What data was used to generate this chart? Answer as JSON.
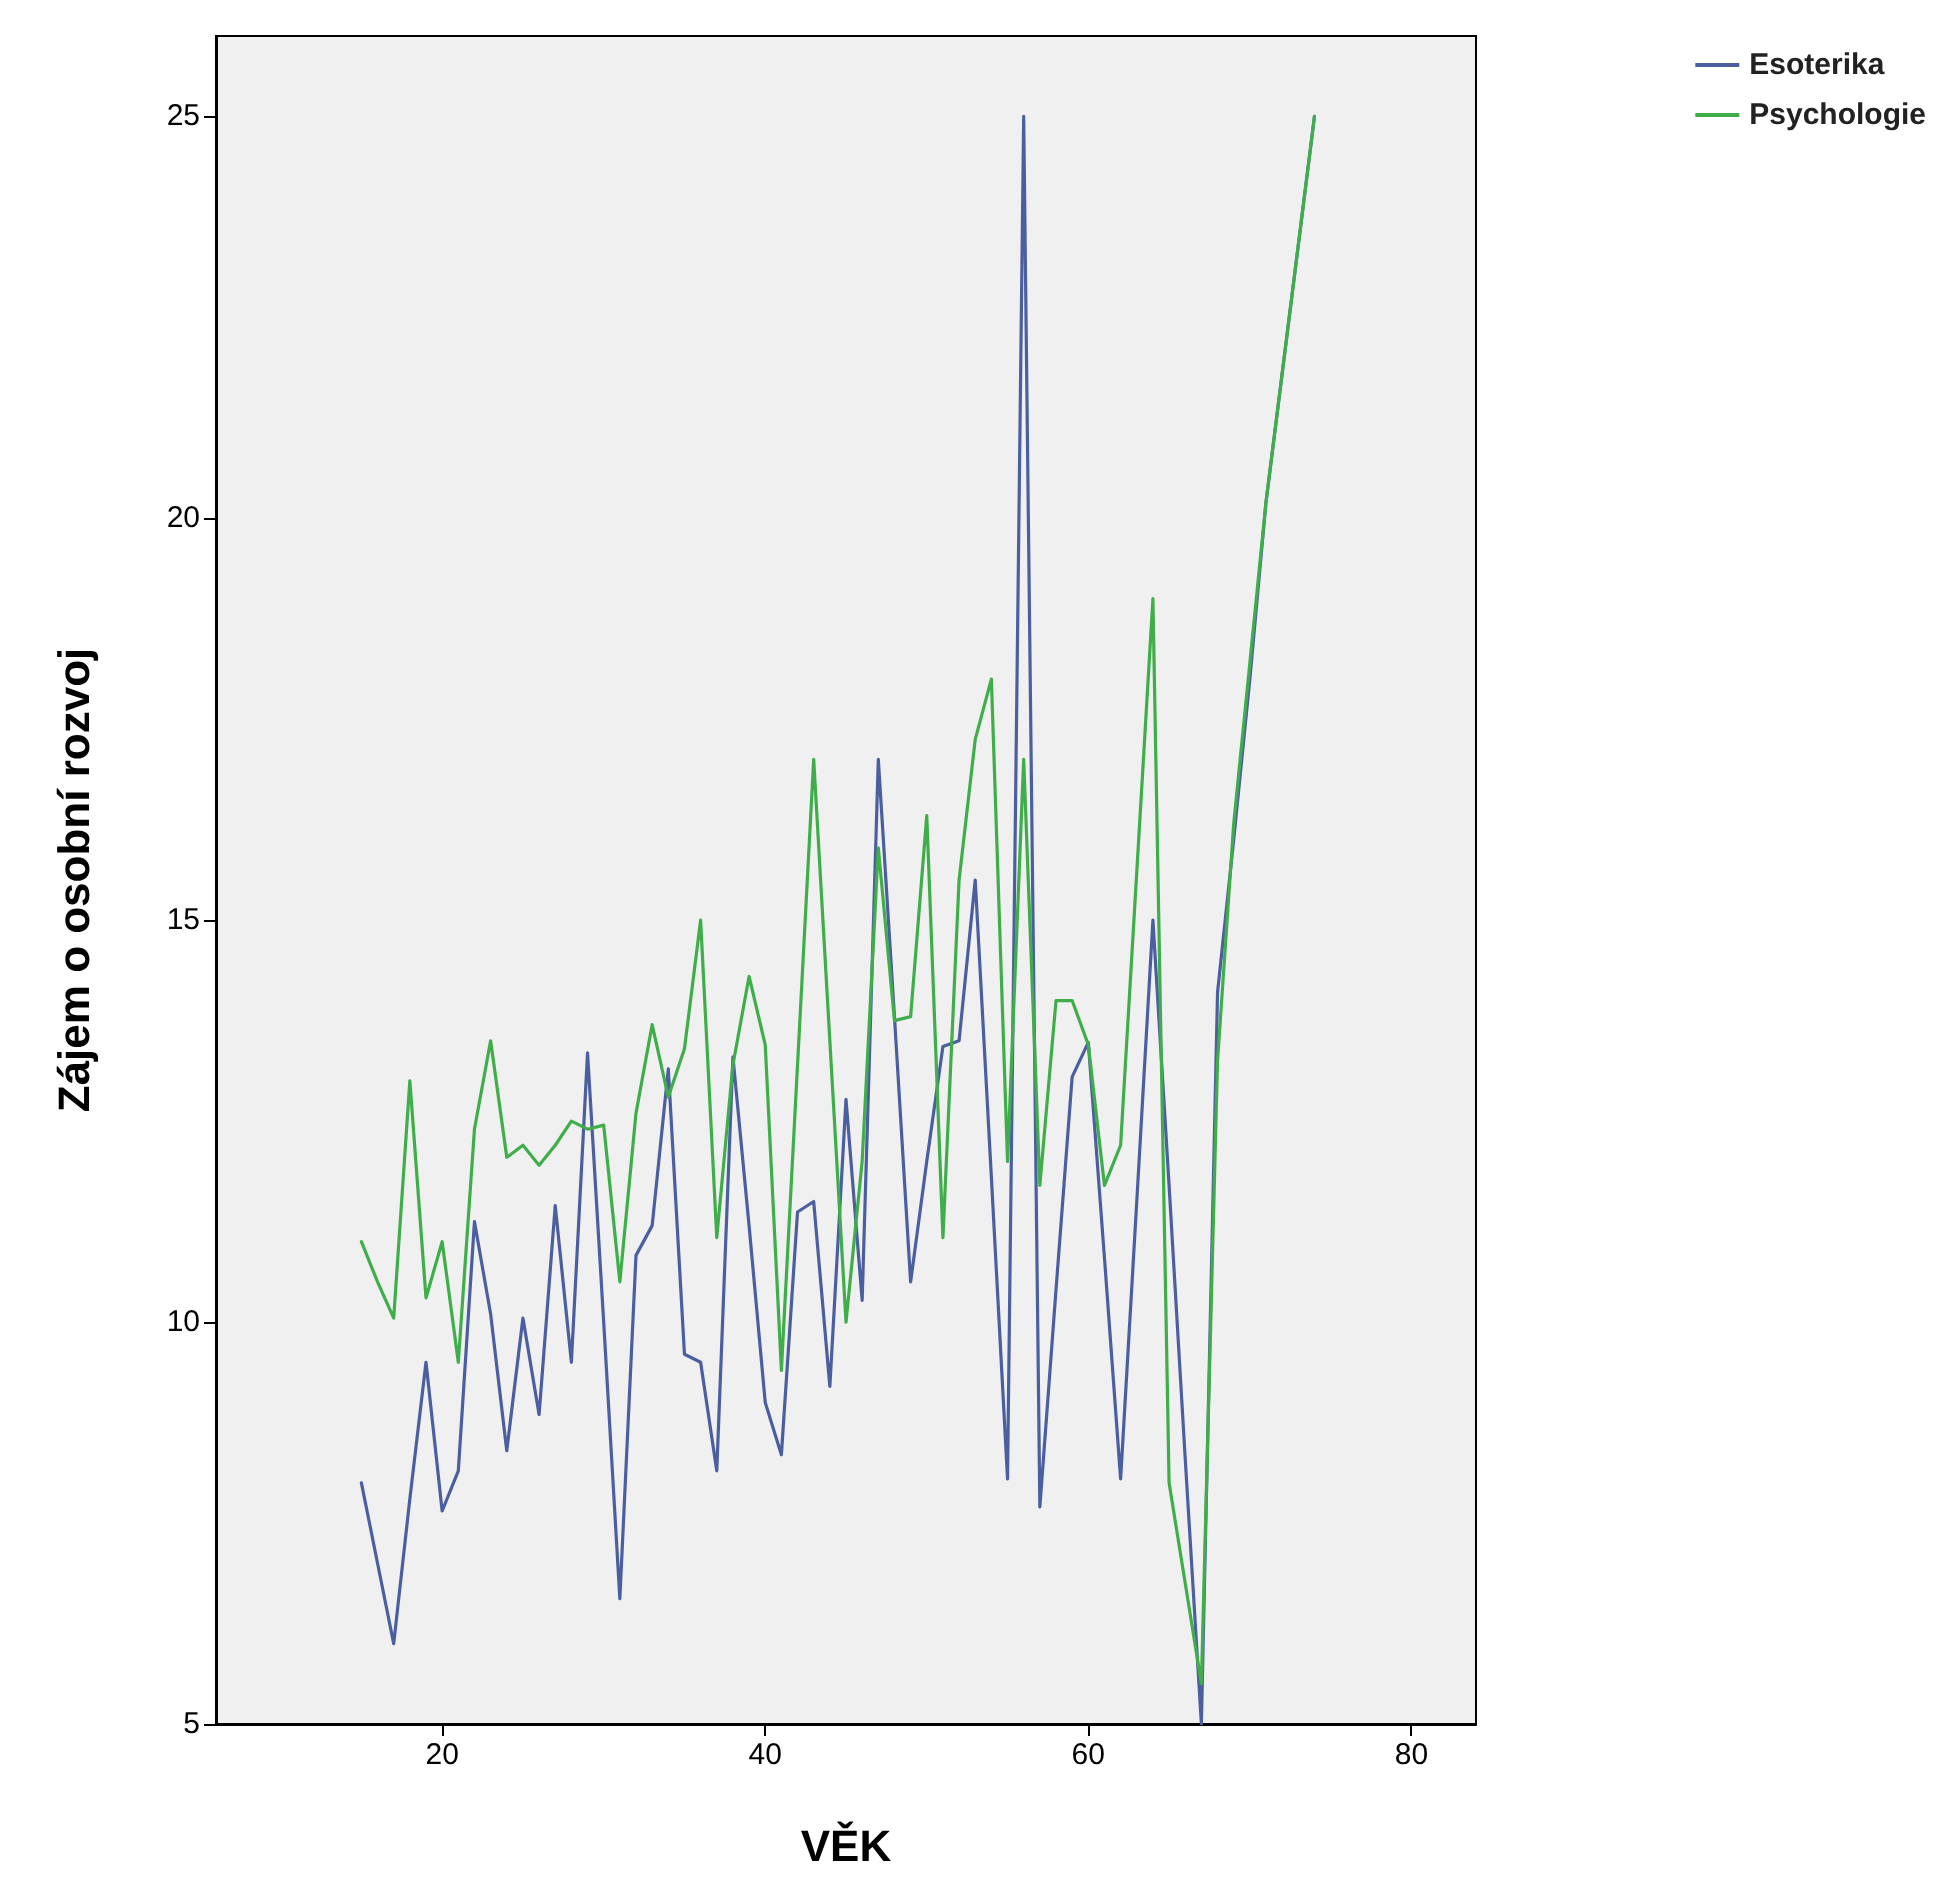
{
  "chart_data": {
    "type": "line",
    "xlabel": "VĚK",
    "ylabel": "Zájem o osobní rozvoj",
    "x": [
      15,
      16,
      17,
      18,
      19,
      20,
      21,
      22,
      23,
      24,
      25,
      26,
      27,
      28,
      29,
      30,
      31,
      32,
      33,
      34,
      35,
      36,
      37,
      38,
      39,
      40,
      41,
      42,
      43,
      44,
      45,
      46,
      47,
      48,
      49,
      50,
      51,
      52,
      53,
      54,
      55,
      56,
      57,
      58,
      59,
      60,
      61,
      62,
      63,
      64,
      65,
      66,
      67,
      68,
      69,
      70,
      71,
      72,
      73,
      74
    ],
    "series": [
      {
        "name": "Esoterika",
        "color": "#4b5fa0",
        "values": [
          8,
          7,
          6,
          7.8,
          9.5,
          7.65,
          8.15,
          11.25,
          10.1,
          8.4,
          10.05,
          8.85,
          11.45,
          9.5,
          13.35,
          10,
          6.56,
          10.83,
          11.2,
          13.15,
          9.6,
          9.5,
          8.15,
          13.3,
          11.2,
          9,
          8.35,
          11.37,
          11.5,
          9.2,
          12.77,
          10.27,
          17,
          13.8,
          10.5,
          12,
          13.43,
          13.5,
          15.5,
          11.8,
          8.05,
          25,
          7.7,
          10.4,
          13.05,
          13.48,
          10.8,
          8.05,
          11.5,
          15,
          11.7,
          8.3,
          5,
          14.1,
          16,
          18,
          20.2,
          21.8,
          23.4,
          25
        ]
      },
      {
        "name": "Psychologie",
        "color": "#3fae4a",
        "values": [
          11,
          10.5,
          10.05,
          13,
          10.3,
          11,
          9.5,
          12.4,
          13.5,
          12.05,
          12.2,
          11.95,
          12.2,
          12.5,
          12.4,
          12.45,
          10.5,
          12.6,
          13.7,
          12.8,
          13.4,
          15,
          11.05,
          13.2,
          14.3,
          13.45,
          9.4,
          13.2,
          17,
          13.5,
          10,
          12,
          15.9,
          13.75,
          13.8,
          16.3,
          11.05,
          15.5,
          17.25,
          18,
          12,
          17,
          11.7,
          14,
          14,
          13.45,
          11.7,
          12.2,
          15.6,
          19,
          8,
          6.75,
          5.5,
          13.25,
          16.2,
          18.2,
          20.2,
          21.8,
          23.4,
          25
        ]
      }
    ],
    "xlim": [
      6,
      84
    ],
    "xticks": [
      20,
      40,
      60,
      80
    ],
    "ylim": [
      5,
      26
    ],
    "yticks": [
      5,
      10,
      15,
      20,
      25
    ],
    "grid": false,
    "legend": "top right",
    "marker": "none",
    "line_style": "solid"
  }
}
